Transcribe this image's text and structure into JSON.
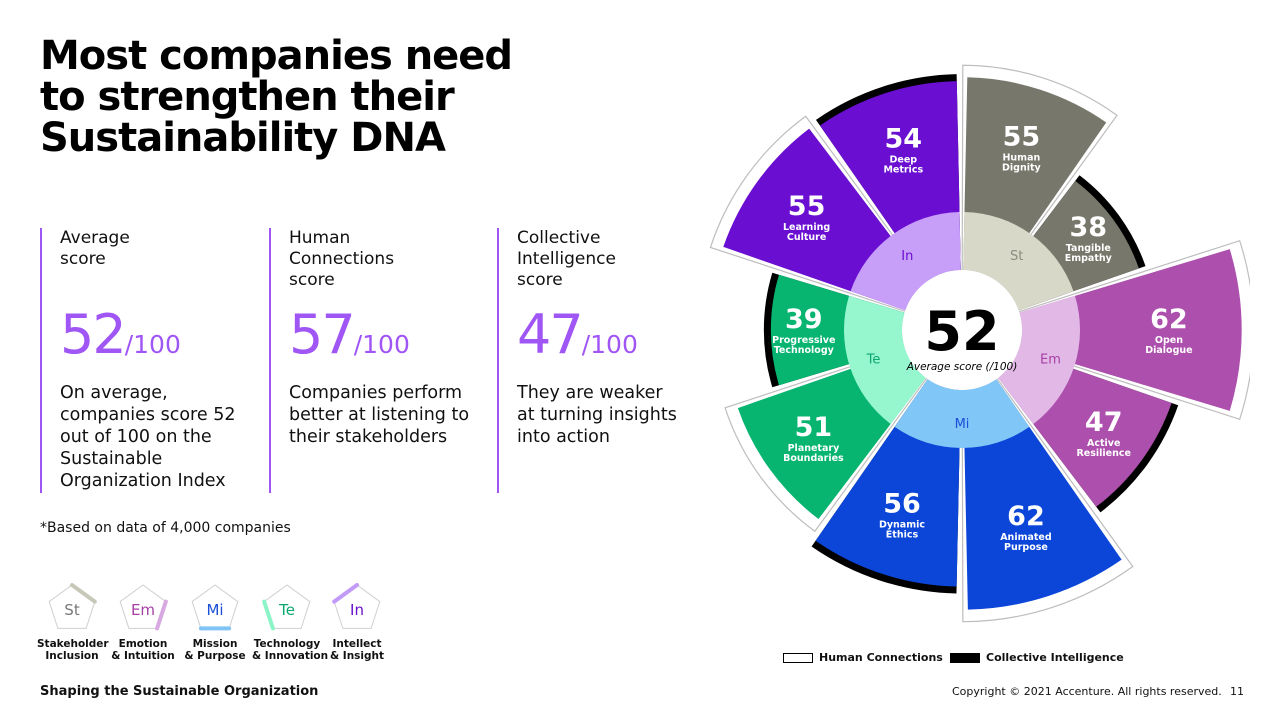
{
  "title": [
    "Most companies need",
    "to strengthen their",
    "Sustainability DNA"
  ],
  "stats": [
    {
      "label": [
        "Average",
        "score"
      ],
      "value": "52",
      "denominator": "/100",
      "description": [
        "On average,",
        "companies score 52",
        "out of 100 on the",
        "Sustainable",
        "Organization Index"
      ]
    },
    {
      "label": [
        "Human",
        "Connections",
        "score"
      ],
      "value": "57",
      "denominator": "/100",
      "description": [
        "Companies perform",
        "better at listening to",
        "their stakeholders"
      ]
    },
    {
      "label": [
        "Collective",
        "Intelligence",
        "score"
      ],
      "value": "47",
      "denominator": "/100",
      "description": [
        "They are weaker",
        "at turning insights",
        "into action"
      ]
    }
  ],
  "footnote": "*Based on data of 4,000 companies",
  "pentagons": [
    {
      "abbr": "St",
      "label": [
        "Stakeholder",
        "Inclusion"
      ],
      "color": "#c8c8b8",
      "text_color": "#777777"
    },
    {
      "abbr": "Em",
      "label": [
        "Emotion",
        "& Intuition"
      ],
      "color": "#d8a8e0",
      "text_color": "#a640a6"
    },
    {
      "abbr": "Mi",
      "label": [
        "Mission",
        "& Purpose"
      ],
      "color": "#7fc4f5",
      "text_color": "#1a4fd8"
    },
    {
      "abbr": "Te",
      "label": [
        "Technology",
        "& Innovation"
      ],
      "color": "#8cf5c8",
      "text_color": "#0aa86e"
    },
    {
      "abbr": "In",
      "label": [
        "Intellect",
        "& Insight"
      ],
      "color": "#c29af7",
      "text_color": "#6a0fd1"
    }
  ],
  "chart_data": {
    "type": "radial-bar",
    "center_value": "52",
    "center_label": "Average score (/100)",
    "groups": [
      {
        "abbr": "St",
        "inner_color": "#d8d8c8",
        "text_color": "#8a8a80"
      },
      {
        "abbr": "Em",
        "inner_color": "#e2b8e6",
        "text_color": "#a640a6"
      },
      {
        "abbr": "Mi",
        "inner_color": "#80c6f7",
        "text_color": "#1a4fd8"
      },
      {
        "abbr": "Te",
        "inner_color": "#96f7cf",
        "text_color": "#0aa86e"
      },
      {
        "abbr": "In",
        "inner_color": "#c79ef8",
        "text_color": "#6a0fd1"
      }
    ],
    "segments": [
      {
        "group": "St",
        "value": 55,
        "label": [
          "Human",
          "Dignity"
        ],
        "type": "Human Connections",
        "color": "#77776b"
      },
      {
        "group": "St",
        "value": 38,
        "label": [
          "Tangible",
          "Empathy"
        ],
        "type": "Collective Intelligence",
        "color": "#77776b"
      },
      {
        "group": "Em",
        "value": 62,
        "label": [
          "Open",
          "Dialogue"
        ],
        "type": "Human Connections",
        "color": "#ad4fad"
      },
      {
        "group": "Em",
        "value": 47,
        "label": [
          "Active",
          "Resilience"
        ],
        "type": "Collective Intelligence",
        "color": "#ad4fad"
      },
      {
        "group": "Mi",
        "value": 62,
        "label": [
          "Animated",
          "Purpose"
        ],
        "type": "Human Connections",
        "color": "#0b46d9"
      },
      {
        "group": "Mi",
        "value": 56,
        "label": [
          "Dynamic",
          "Ethics"
        ],
        "type": "Collective Intelligence",
        "color": "#0b46d9"
      },
      {
        "group": "Te",
        "value": 51,
        "label": [
          "Planetary",
          "Boundaries"
        ],
        "type": "Human Connections",
        "color": "#07b470"
      },
      {
        "group": "Te",
        "value": 39,
        "label": [
          "Progressive",
          "Technology"
        ],
        "type": "Collective Intelligence",
        "color": "#07b470"
      },
      {
        "group": "In",
        "value": 55,
        "label": [
          "Learning",
          "Culture"
        ],
        "type": "Human Connections",
        "color": "#6a0fd1"
      },
      {
        "group": "In",
        "value": 54,
        "label": [
          "Deep",
          "Metrics"
        ],
        "type": "Collective Intelligence",
        "color": "#6a0fd1"
      }
    ],
    "legend": [
      {
        "name": "Human Connections",
        "style": "hollow"
      },
      {
        "name": "Collective Intelligence",
        "style": "solid"
      }
    ]
  },
  "footer": {
    "left": "Shaping the Sustainable Organization",
    "copyright": "Copyright © 2021 Accenture. All rights reserved.",
    "page": "11"
  }
}
